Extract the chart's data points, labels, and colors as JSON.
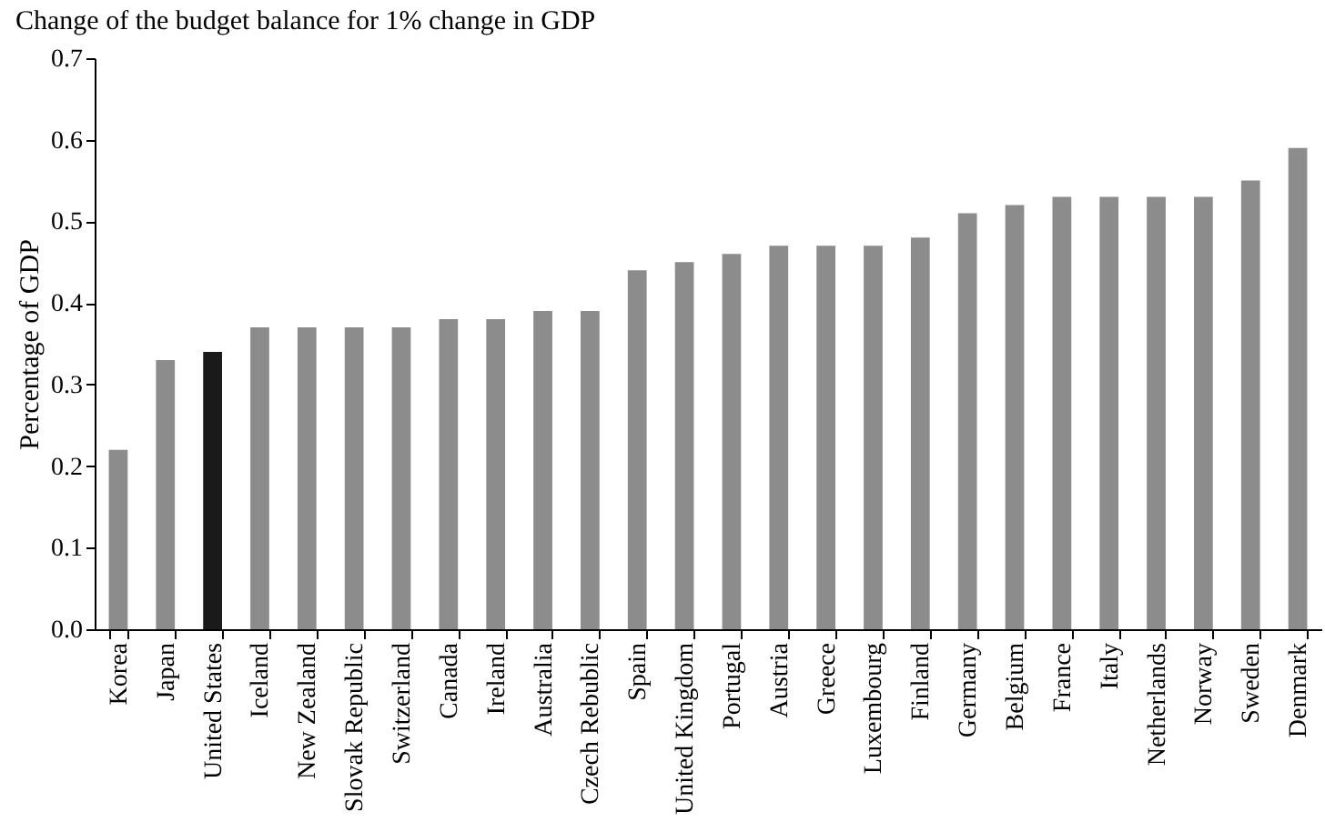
{
  "chart_data": {
    "type": "bar",
    "title": "Change of the budget balance for 1% change in GDP",
    "ylabel": "Percentage of GDP",
    "categories": [
      "Korea",
      "Japan",
      "United States",
      "Iceland",
      "New Zealand",
      "Slovak Republic",
      "Switzerland",
      "Canada",
      "Ireland",
      "Australia",
      "Czech Rebublic",
      "Spain",
      "United Kingdom",
      "Portugal",
      "Austria",
      "Greece",
      "Luxembourg",
      "Finland",
      "Germany",
      "Belgium",
      "France",
      "Italy",
      "Netherlands",
      "Norway",
      "Sweden",
      "Denmark"
    ],
    "values": [
      0.22,
      0.33,
      0.34,
      0.37,
      0.37,
      0.37,
      0.37,
      0.38,
      0.38,
      0.39,
      0.39,
      0.44,
      0.45,
      0.46,
      0.47,
      0.47,
      0.47,
      0.48,
      0.51,
      0.52,
      0.53,
      0.53,
      0.53,
      0.53,
      0.55,
      0.59
    ],
    "colors": [
      "#8c8c8c",
      "#8c8c8c",
      "#1a1a1a",
      "#8c8c8c",
      "#8c8c8c",
      "#8c8c8c",
      "#8c8c8c",
      "#8c8c8c",
      "#8c8c8c",
      "#8c8c8c",
      "#8c8c8c",
      "#8c8c8c",
      "#8c8c8c",
      "#8c8c8c",
      "#8c8c8c",
      "#8c8c8c",
      "#8c8c8c",
      "#8c8c8c",
      "#8c8c8c",
      "#8c8c8c",
      "#8c8c8c",
      "#8c8c8c",
      "#8c8c8c",
      "#8c8c8c",
      "#8c8c8c",
      "#8c8c8c"
    ],
    "ylim": [
      0,
      0.7
    ],
    "yticks": [
      {
        "value": 0,
        "label": "0.0"
      },
      0.1,
      0.2,
      0.3,
      0.4,
      0.5,
      0.6,
      0.7
    ],
    "grid": false
  }
}
